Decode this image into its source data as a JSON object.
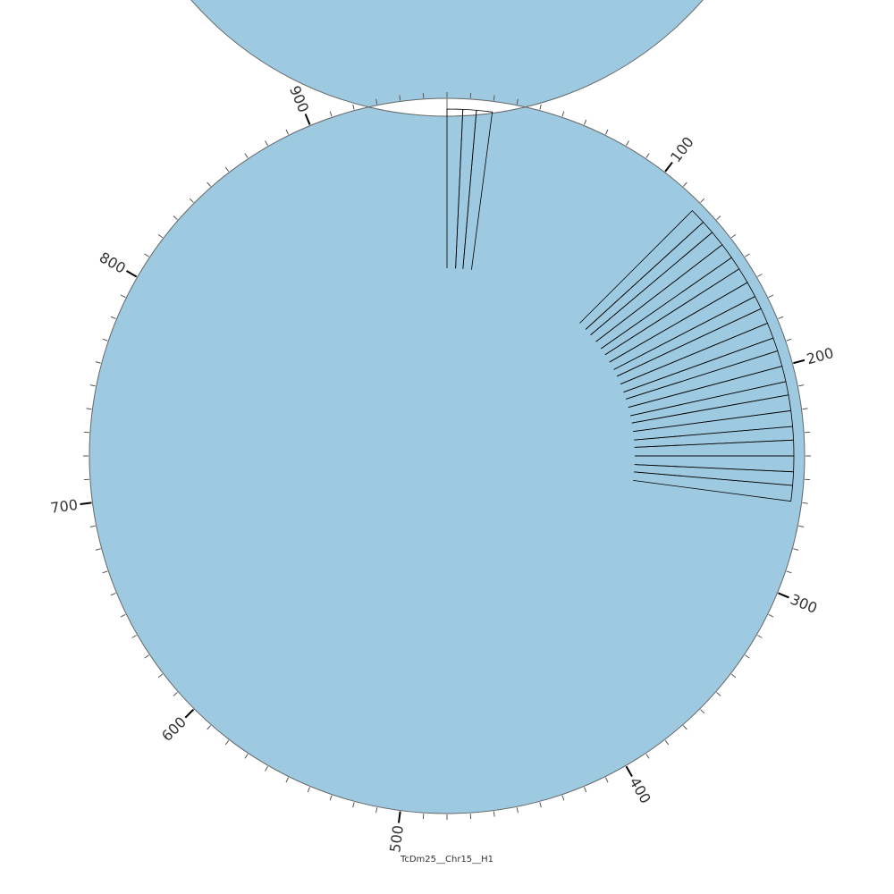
{
  "chart_data": {
    "type": "circos",
    "caption": "TcDm25__Chr15__H1",
    "ideogram": {
      "name": "TcDm25__Chr15__H1",
      "start": 0,
      "end": 960,
      "color": "#9ecae1",
      "stroke": "#666666"
    },
    "ticks": {
      "minor_interval": 10,
      "major_labels": [
        "100",
        "200",
        "300",
        "400",
        "500",
        "600",
        "700",
        "800",
        "900"
      ],
      "major_positions": [
        100,
        200,
        300,
        400,
        500,
        600,
        700,
        800,
        900
      ]
    },
    "histogram": {
      "note_color": "#000000",
      "bins": [
        {
          "start": 0,
          "end": 7,
          "value": 1.0
        },
        {
          "start": 7,
          "end": 13,
          "value": 1.0
        },
        {
          "start": 13,
          "end": 20,
          "value": 1.0
        },
        {
          "start": 120,
          "end": 127,
          "value": 1.0
        },
        {
          "start": 127,
          "end": 133,
          "value": 1.0
        },
        {
          "start": 133,
          "end": 140,
          "value": 1.0
        },
        {
          "start": 140,
          "end": 147,
          "value": 1.0
        },
        {
          "start": 147,
          "end": 153,
          "value": 1.0
        },
        {
          "start": 153,
          "end": 160,
          "value": 1.0
        },
        {
          "start": 160,
          "end": 167,
          "value": 1.0
        },
        {
          "start": 167,
          "end": 173,
          "value": 1.0
        },
        {
          "start": 173,
          "end": 180,
          "value": 1.0
        },
        {
          "start": 180,
          "end": 187,
          "value": 1.0
        },
        {
          "start": 187,
          "end": 193,
          "value": 1.0
        },
        {
          "start": 193,
          "end": 200,
          "value": 1.0
        },
        {
          "start": 200,
          "end": 207,
          "value": 1.0
        },
        {
          "start": 207,
          "end": 213,
          "value": 1.0
        },
        {
          "start": 213,
          "end": 220,
          "value": 1.0
        },
        {
          "start": 220,
          "end": 227,
          "value": 1.0
        },
        {
          "start": 227,
          "end": 233,
          "value": 1.0
        },
        {
          "start": 233,
          "end": 240,
          "value": 1.0
        },
        {
          "start": 240,
          "end": 247,
          "value": 1.0
        },
        {
          "start": 247,
          "end": 253,
          "value": 1.0
        },
        {
          "start": 253,
          "end": 260,
          "value": 1.0
        }
      ]
    }
  }
}
